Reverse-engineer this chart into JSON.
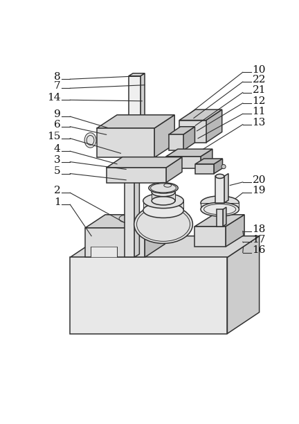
{
  "fig_width": 4.32,
  "fig_height": 6.12,
  "dpi": 100,
  "bg_color": "#ffffff",
  "line_color": "#303030",
  "label_color": "#101010",
  "lw_main": 1.1,
  "lw_thin": 0.7,
  "label_fs": 11
}
